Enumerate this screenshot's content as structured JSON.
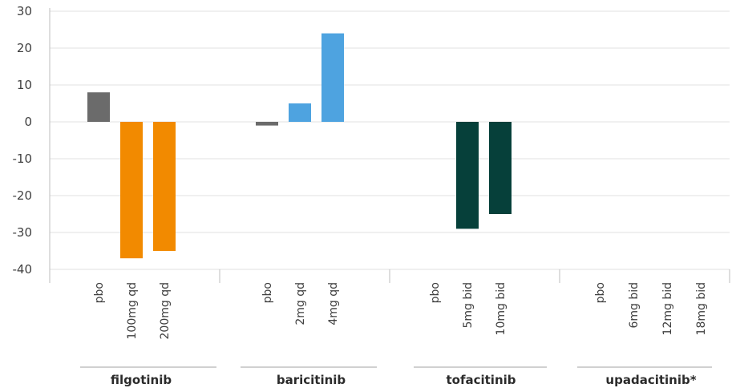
{
  "chart_data": {
    "type": "bar",
    "title": "",
    "xlabel": "",
    "ylabel": "",
    "ylim": [
      -40,
      30
    ],
    "yticks": [
      30,
      20,
      10,
      0,
      -10,
      -20,
      -30,
      -40
    ],
    "grid": true,
    "legend": "none",
    "groups": [
      {
        "name": "filgotinib",
        "bars": [
          {
            "label": "pbo",
            "value": 8,
            "color": "#6b6b6b"
          },
          {
            "label": "100mg qd",
            "value": -37,
            "color": "#f28a00"
          },
          {
            "label": "200mg qd",
            "value": -35,
            "color": "#f28a00"
          }
        ]
      },
      {
        "name": "baricitinib",
        "bars": [
          {
            "label": "pbo",
            "value": -1,
            "color": "#6b6b6b"
          },
          {
            "label": "2mg qd",
            "value": 5,
            "color": "#4ea3e0"
          },
          {
            "label": "4mg qd",
            "value": 24,
            "color": "#4ea3e0"
          }
        ]
      },
      {
        "name": "tofacitinib",
        "bars": [
          {
            "label": "pbo",
            "value": null,
            "color": "#6b6b6b"
          },
          {
            "label": "5mg bid",
            "value": -29,
            "color": "#06403a"
          },
          {
            "label": "10mg bid",
            "value": -25,
            "color": "#06403a"
          }
        ]
      },
      {
        "name": "upadacitinib*",
        "bars": [
          {
            "label": "pbo",
            "value": null,
            "color": "#6b6b6b"
          },
          {
            "label": "6mg bid",
            "value": null,
            "color": "#6b6b6b"
          },
          {
            "label": "12mg bid",
            "value": null,
            "color": "#6b6b6b"
          },
          {
            "label": "18mg bid",
            "value": null,
            "color": "#6b6b6b"
          }
        ]
      }
    ]
  }
}
